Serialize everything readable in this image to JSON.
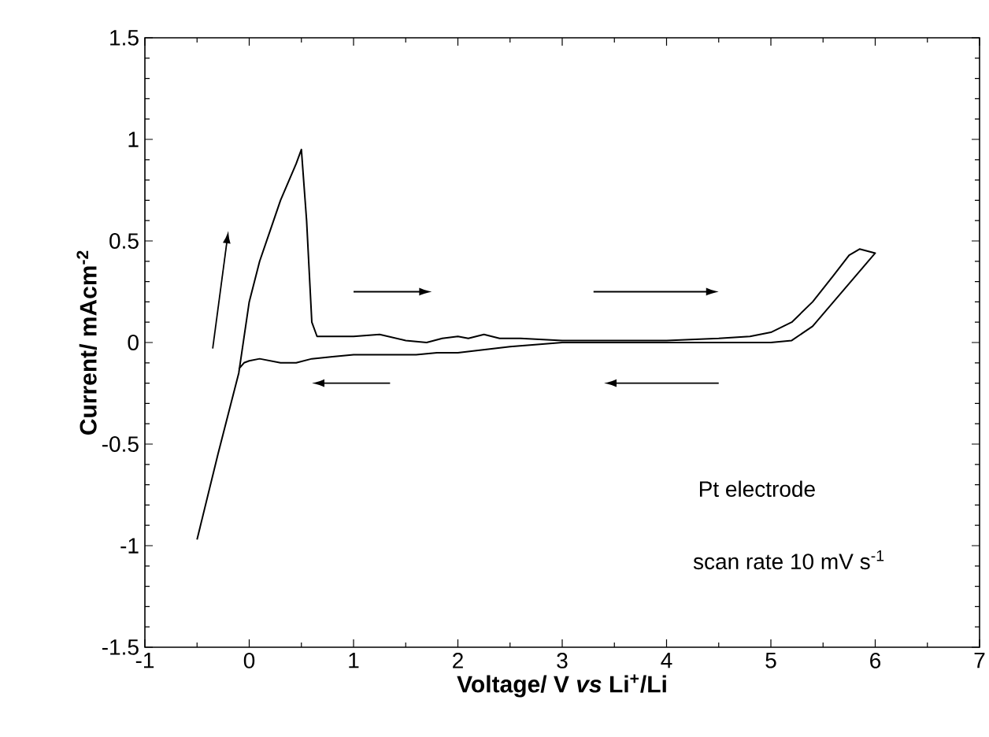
{
  "chart_data": {
    "type": "line",
    "xlabel": "Voltage/ V *vs* Li$^{+}$/Li",
    "ylabel": "Current/ mAcm$^{-2}$",
    "annotations": [
      "Pt electrode",
      "scan rate  10 mV s$^{-1}$"
    ],
    "xlim": [
      -1,
      7
    ],
    "ylim": [
      -1.5,
      1.5
    ],
    "xticks": [
      -1,
      0,
      1,
      2,
      3,
      4,
      5,
      6,
      7
    ],
    "yticks": [
      -1.5,
      -1,
      -0.5,
      0,
      0.5,
      1,
      1.5
    ],
    "grid": false,
    "marker": "none",
    "line_style": "solid",
    "series": [
      {
        "color": "#000000",
        "x": [
          -0.5,
          -0.3,
          -0.1,
          0.0,
          0.1,
          0.2,
          0.3,
          0.4,
          0.45,
          0.5,
          0.55,
          0.6,
          0.65,
          1.0,
          1.25,
          1.5,
          1.7,
          1.85,
          2.0,
          2.1,
          2.25,
          2.4,
          2.6,
          3.0,
          3.5,
          4.0,
          4.5,
          4.8,
          5.0,
          5.2,
          5.4,
          5.6,
          5.75,
          5.85,
          6.0,
          5.85,
          5.6,
          5.4,
          5.2,
          5.0,
          4.0,
          3.5,
          3.0,
          2.5,
          2.0,
          1.8,
          1.6,
          1.3,
          1.0,
          0.8,
          0.6,
          0.45,
          0.3,
          0.1,
          0.0,
          -0.05,
          -0.1
        ],
        "values": [
          -0.97,
          -0.55,
          -0.15,
          0.2,
          0.4,
          0.55,
          0.7,
          0.82,
          0.88,
          0.95,
          0.6,
          0.1,
          0.03,
          0.03,
          0.04,
          0.01,
          0.0,
          0.02,
          0.03,
          0.02,
          0.04,
          0.02,
          0.02,
          0.01,
          0.01,
          0.01,
          0.02,
          0.03,
          0.05,
          0.1,
          0.2,
          0.33,
          0.43,
          0.46,
          0.44,
          0.35,
          0.2,
          0.08,
          0.01,
          0.0,
          0.0,
          0.0,
          0.0,
          -0.02,
          -0.05,
          -0.05,
          -0.06,
          -0.06,
          -0.06,
          -0.07,
          -0.08,
          -0.1,
          -0.1,
          -0.08,
          -0.09,
          -0.1,
          -0.13
        ]
      }
    ]
  }
}
